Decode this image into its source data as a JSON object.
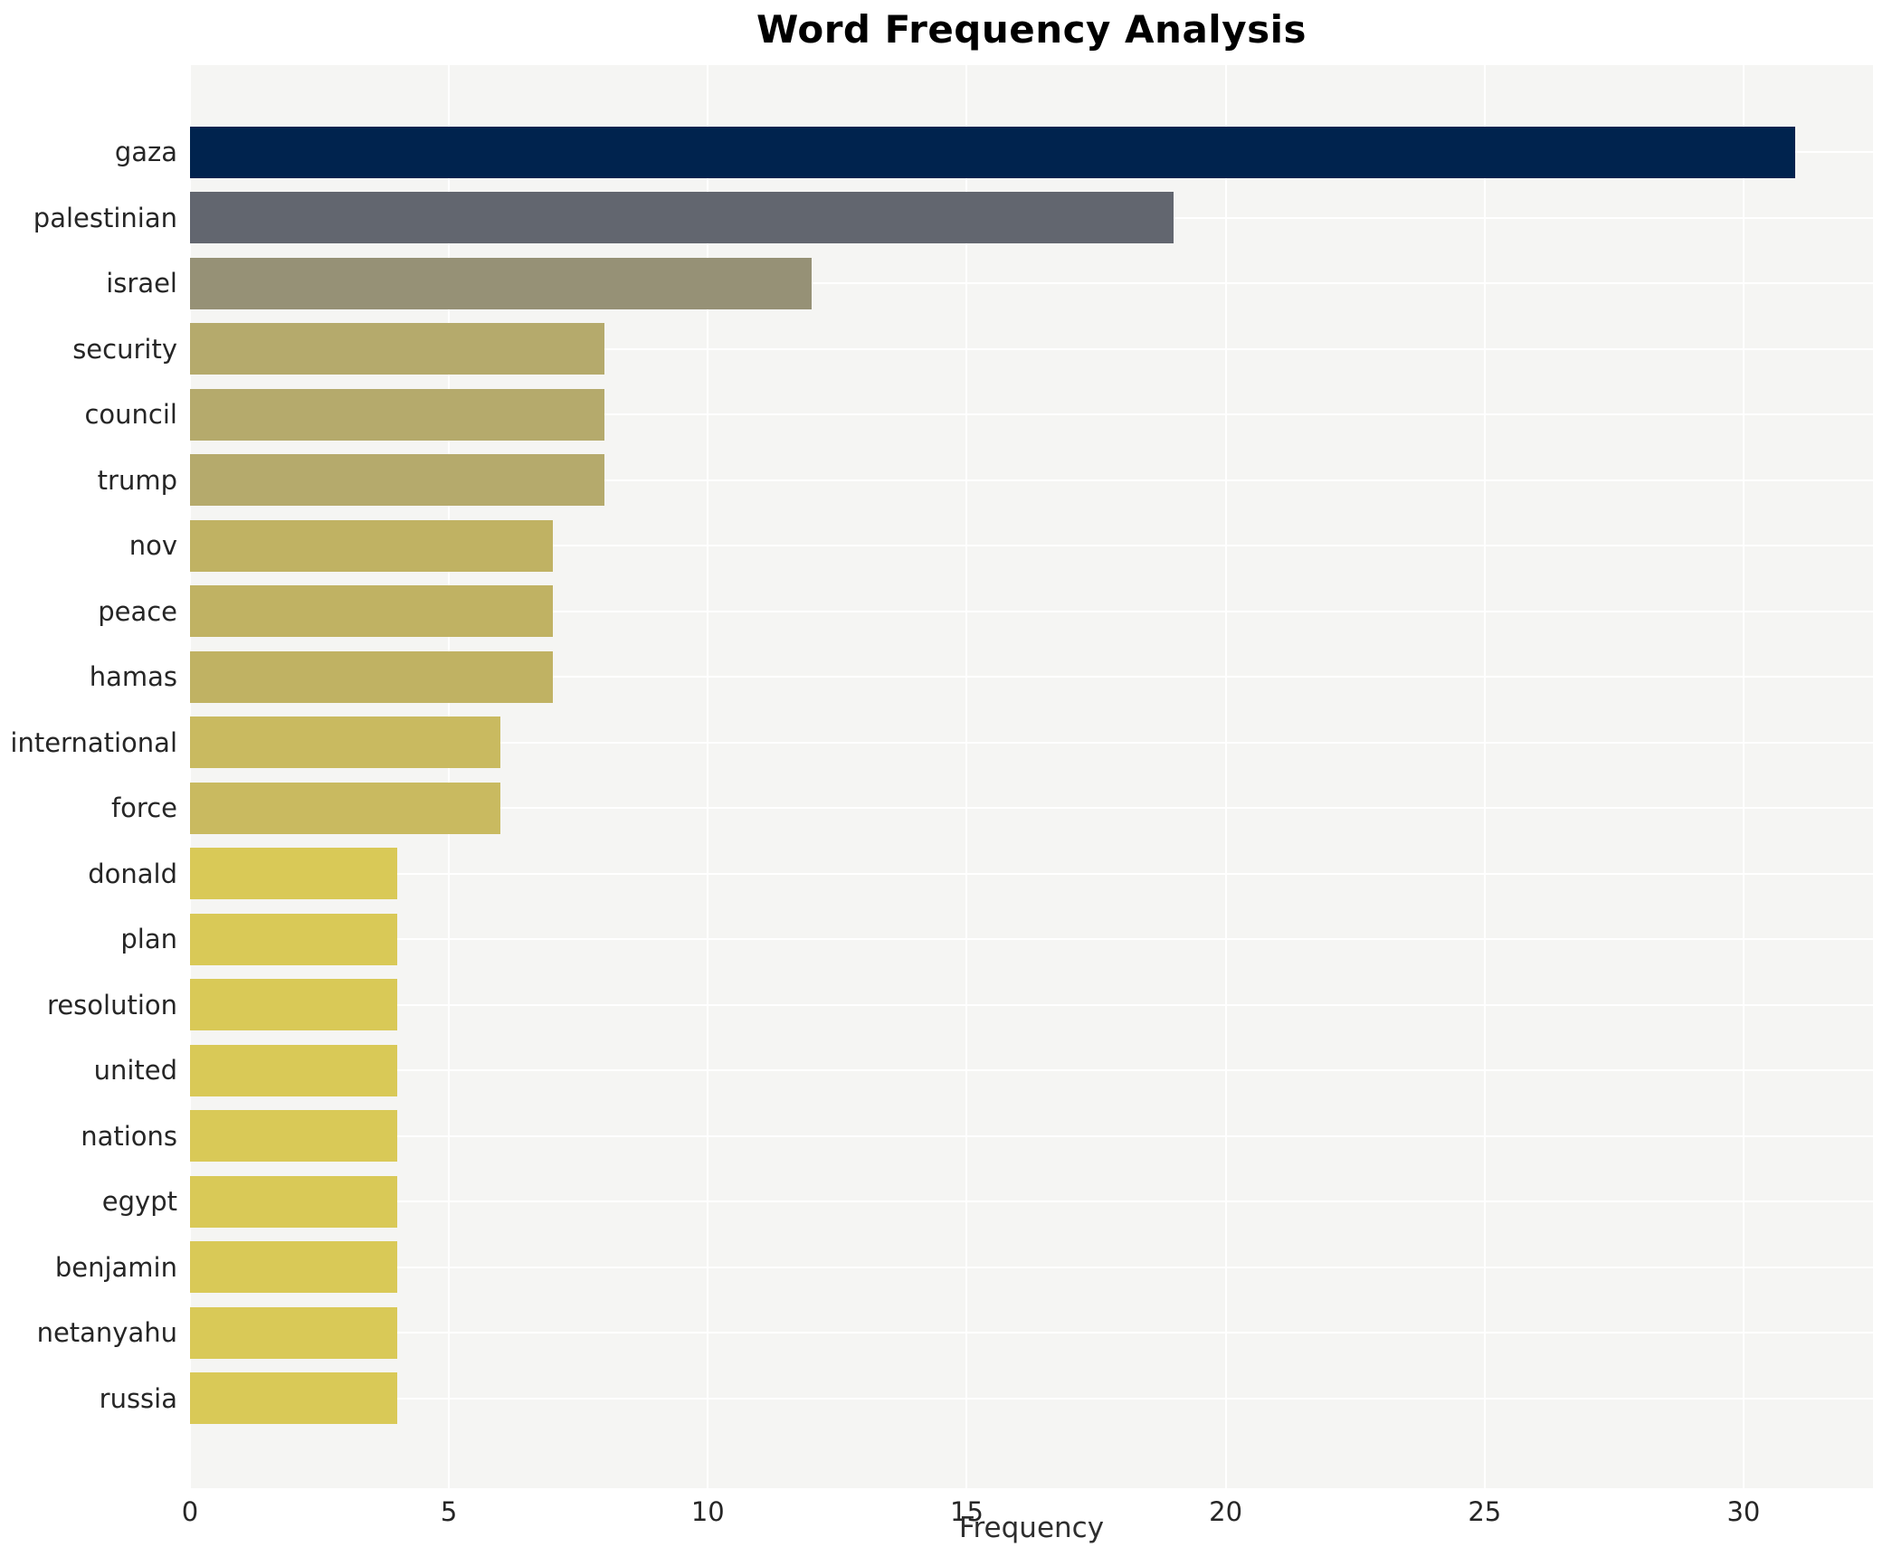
{
  "chart_data": {
    "type": "bar",
    "orientation": "horizontal",
    "title": "Word Frequency Analysis",
    "xlabel": "Frequency",
    "ylabel": "",
    "categories": [
      "gaza",
      "palestinian",
      "israel",
      "security",
      "council",
      "trump",
      "nov",
      "peace",
      "hamas",
      "international",
      "force",
      "donald",
      "plan",
      "resolution",
      "united",
      "nations",
      "egypt",
      "benjamin",
      "netanyahu",
      "russia"
    ],
    "values": [
      31,
      19,
      12,
      8,
      8,
      8,
      7,
      7,
      7,
      6,
      6,
      4,
      4,
      4,
      4,
      4,
      4,
      4,
      4,
      4
    ],
    "bar_colors": [
      "#00234e",
      "#62666f",
      "#969176",
      "#b5aa6c",
      "#b5aa6c",
      "#b5aa6c",
      "#c0b263",
      "#c0b263",
      "#c0b263",
      "#c9ba60",
      "#c9ba60",
      "#d9c957",
      "#d9c957",
      "#d9c957",
      "#d9c957",
      "#d9c957",
      "#d9c957",
      "#d9c957",
      "#d9c957",
      "#d9c957"
    ],
    "xticks": [
      0,
      5,
      10,
      15,
      20,
      25,
      30
    ],
    "xlim": [
      0,
      32.5
    ],
    "grid": "white-on-gray",
    "legend": "none",
    "colors": {
      "plot_background": "#f5f5f3",
      "figure_background": "#ffffff",
      "gridline": "#ffffff",
      "tick_text": "#262626",
      "title_text": "#000000"
    }
  }
}
